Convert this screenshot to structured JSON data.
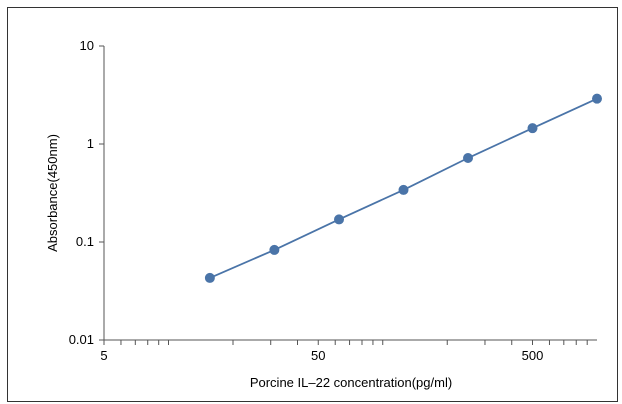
{
  "chart_data": {
    "type": "line",
    "xlabel": "Porcine IL–22 concentration(pg/ml)",
    "ylabel": "Absorbance(450nm)",
    "x_scale": "log",
    "y_scale": "log",
    "xlim": [
      5,
      1000
    ],
    "ylim": [
      0.01,
      10
    ],
    "x_ticks": [
      {
        "value": 5,
        "label": "5"
      },
      {
        "value": 50,
        "label": "50"
      },
      {
        "value": 500,
        "label": "500"
      }
    ],
    "y_ticks": [
      {
        "value": 10,
        "label": "10"
      },
      {
        "value": 1,
        "label": "1"
      },
      {
        "value": 0.1,
        "label": "0.1"
      },
      {
        "value": 0.01,
        "label": "0.01"
      }
    ],
    "grid": false,
    "legend": "none",
    "series": [
      {
        "x": [
          15.6,
          31.2,
          62.5,
          125,
          250,
          500,
          1000
        ],
        "y": [
          0.043,
          0.083,
          0.17,
          0.34,
          0.72,
          1.45,
          2.9
        ],
        "color": "#4a74a8"
      }
    ]
  }
}
